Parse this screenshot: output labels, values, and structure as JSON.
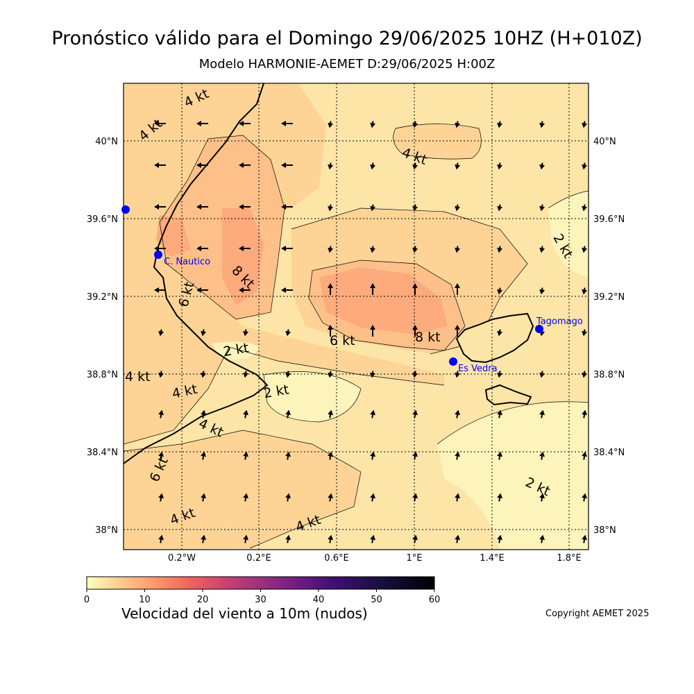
{
  "title": "Pronóstico válido para el Domingo 29/06/2025 10HZ (H+010Z)",
  "subtitle": "Modelo HARMONIE-AEMET D:29/06/2025 H:00Z",
  "map": {
    "lat_ticks": [
      "38°N",
      "38.4°N",
      "38.8°N",
      "39.2°N",
      "39.6°N",
      "40°N"
    ],
    "lon_ticks": [
      "0.2°W",
      "0.2°E",
      "0.6°E",
      "1°E",
      "1.4°E",
      "1.8°E"
    ],
    "places": [
      {
        "name": "C. Nautico",
        "color": "#0000ff"
      },
      {
        "name": "Tagomago",
        "color": "#0000ff"
      },
      {
        "name": "Es Vedra",
        "color": "#0000ff"
      },
      {
        "name": "",
        "color": "#0000ff"
      }
    ],
    "contour_labels": [
      "4 kt",
      "4 kt",
      "4 kt",
      "8 kt",
      "6 kt",
      "2 kt",
      "4 kt",
      "4 kt",
      "2 kt",
      "4 kt",
      "6 kt",
      "4 kt",
      "4 kt",
      "6 kt",
      "8 kt",
      "2 kt",
      "2 kt"
    ],
    "shading_colors": {
      "0-2": "#fcf4bb",
      "2-4": "#fde5a8",
      "4-6": "#fdd496",
      "6-8": "#fdc089",
      "8-10": "#fdaa7c"
    }
  },
  "colorbar": {
    "ticks": [
      "0",
      "10",
      "20",
      "30",
      "40",
      "50",
      "60"
    ],
    "label": "Velocidad del viento a 10m (nudos)",
    "colormap": "magma_r"
  },
  "copyright": "Copyright AEMET 2025"
}
